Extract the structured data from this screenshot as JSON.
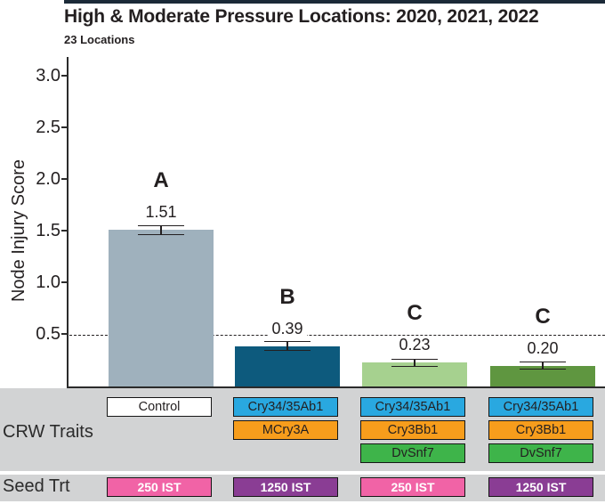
{
  "header": {
    "title": "High & Moderate Pressure Locations: 2020, 2021, 2022",
    "subtitle": "23 Locations"
  },
  "chart_data": {
    "type": "bar",
    "title": "High & Moderate Pressure Locations: 2020, 2021, 2022",
    "subtitle": "23 Locations",
    "xlabel": "",
    "ylabel": "Node Injury Score",
    "ylim": [
      0,
      3.0
    ],
    "yticks": [
      "3.0",
      "2.5",
      "2.0",
      "1.5",
      "1.0",
      "0.5"
    ],
    "threshold": 0.5,
    "grid": false,
    "legend": "none",
    "bars": [
      {
        "letter": "A",
        "value": 1.51,
        "label": "1.51",
        "error": 0.04,
        "color": "#9fb1bd",
        "traits": [
          "Control"
        ],
        "seed_treatment": "250 IST"
      },
      {
        "letter": "B",
        "value": 0.39,
        "label": "0.39",
        "error": 0.04,
        "color": "#0d5a7d",
        "traits": [
          "Cry34/35Ab1",
          "MCry3A"
        ],
        "seed_treatment": "1250 IST"
      },
      {
        "letter": "C",
        "value": 0.23,
        "label": "0.23",
        "error": 0.03,
        "color": "#a6d18f",
        "traits": [
          "Cry34/35Ab1",
          "Cry3Bb1",
          "DvSnf7"
        ],
        "seed_treatment": "250 IST"
      },
      {
        "letter": "C",
        "value": 0.2,
        "label": "0.20",
        "error": 0.03,
        "color": "#5f9640",
        "traits": [
          "Cry34/35Ab1",
          "Cry3Bb1",
          "DvSnf7"
        ],
        "seed_treatment": "1250 IST"
      }
    ]
  },
  "table": {
    "crw_label": "CRW Traits",
    "seed_label": "Seed Trt",
    "columns": [
      {
        "traits": [
          {
            "label": "Control",
            "type": "control"
          }
        ],
        "seed": {
          "label": "250 IST",
          "type": "pink"
        }
      },
      {
        "traits": [
          {
            "label": "Cry34/35Ab1",
            "type": "blue"
          },
          {
            "label": "MCry3A",
            "type": "orange"
          }
        ],
        "seed": {
          "label": "1250 IST",
          "type": "purple"
        }
      },
      {
        "traits": [
          {
            "label": "Cry34/35Ab1",
            "type": "blue"
          },
          {
            "label": "Cry3Bb1",
            "type": "orange"
          },
          {
            "label": "DvSnf7",
            "type": "green"
          }
        ],
        "seed": {
          "label": "250 IST",
          "type": "pink"
        }
      },
      {
        "traits": [
          {
            "label": "Cry34/35Ab1",
            "type": "blue"
          },
          {
            "label": "Cry3Bb1",
            "type": "orange"
          },
          {
            "label": "DvSnf7",
            "type": "green"
          }
        ],
        "seed": {
          "label": "1250 IST",
          "type": "purple"
        }
      }
    ]
  },
  "colors": {
    "top_strip": "#1b2a38",
    "band_gray": "#d2d3d4",
    "trait_blue": "#29a8e0",
    "trait_orange": "#f79d1c",
    "trait_green": "#3eb44a",
    "seed_pink": "#f163a6",
    "seed_purple": "#8a3d94",
    "box_border": "#161616",
    "axis": "#2b2b2b",
    "text_dark": "#231f20"
  }
}
